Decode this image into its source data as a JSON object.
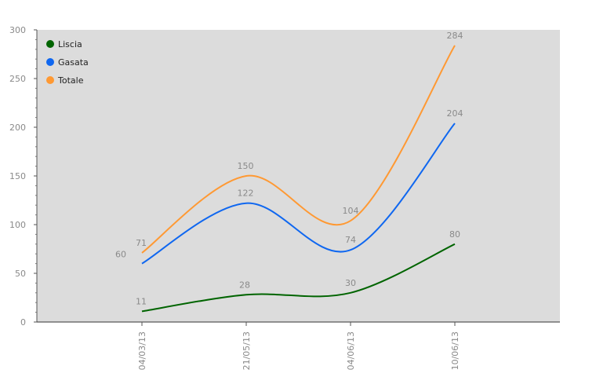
{
  "chart_data": {
    "type": "line",
    "categories": [
      "04/03/13",
      "21/05/13",
      "04/06/13",
      "10/06/13"
    ],
    "series": [
      {
        "name": "Liscia",
        "values": [
          11,
          28,
          30,
          80
        ],
        "color": "#006400"
      },
      {
        "name": "Gasata",
        "values": [
          60,
          122,
          74,
          204
        ],
        "color": "#0f67f0"
      },
      {
        "name": "Totale",
        "values": [
          71,
          150,
          104,
          284
        ],
        "color": "#ff9933"
      }
    ],
    "ylim": [
      0,
      300
    ],
    "yticks": [
      0,
      50,
      100,
      150,
      200,
      250,
      300
    ],
    "grid": false,
    "legend": "top-left",
    "plot_background": "#dcdcdc",
    "smooth": true,
    "title": "",
    "xlabel": "",
    "ylabel": ""
  }
}
